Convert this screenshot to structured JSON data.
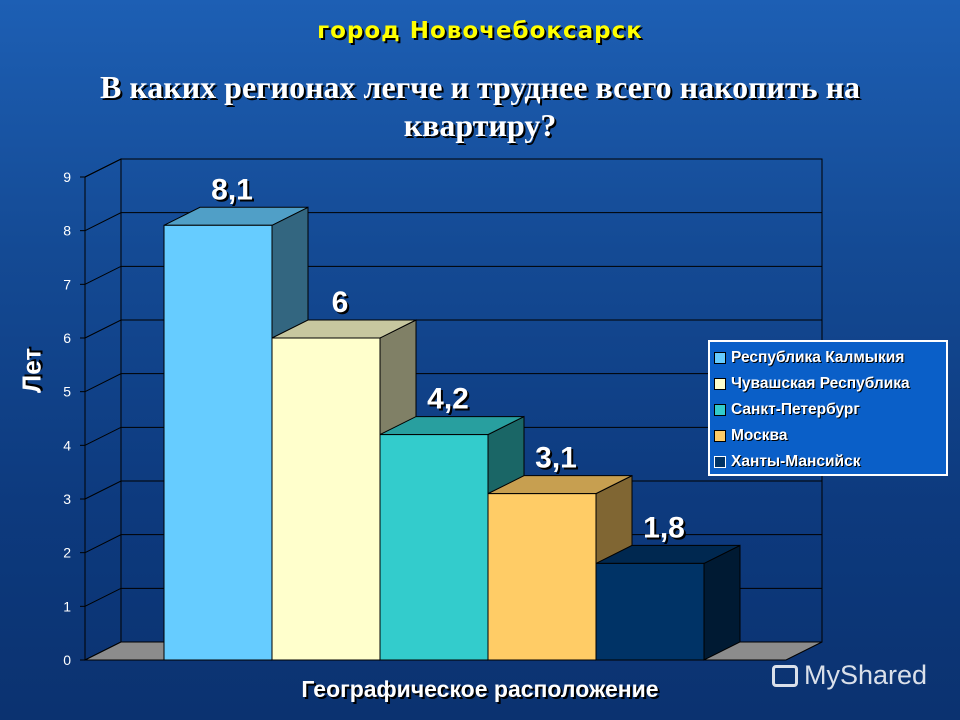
{
  "city": "город  Новочебоксарск",
  "title": "В каких регионах легче и труднее всего накопить на квартиру?",
  "watermark": "MyShared",
  "chart_data": {
    "type": "bar",
    "xlabel": "Географическое расположение",
    "ylabel": "Лет",
    "ylim": [
      0,
      9
    ],
    "yticks": [
      "0",
      "1",
      "2",
      "3",
      "4",
      "5",
      "6",
      "7",
      "8",
      "9"
    ],
    "grid": true,
    "legend_position": "right",
    "series": [
      {
        "name": "Республика Калмыкия",
        "value": 8.1,
        "label": "8,1",
        "color": "#66ccff"
      },
      {
        "name": "Чувашская Республика",
        "value": 6,
        "label": "6",
        "color": "#ffffcc"
      },
      {
        "name": "Санкт-Петербург",
        "value": 4.2,
        "label": "4,2",
        "color": "#33cccc"
      },
      {
        "name": "Москва",
        "value": 3.1,
        "label": "3,1",
        "color": "#ffcc66"
      },
      {
        "name": "Ханты-Мансийск",
        "value": 1.8,
        "label": "1,8",
        "color": "#003366"
      }
    ]
  }
}
